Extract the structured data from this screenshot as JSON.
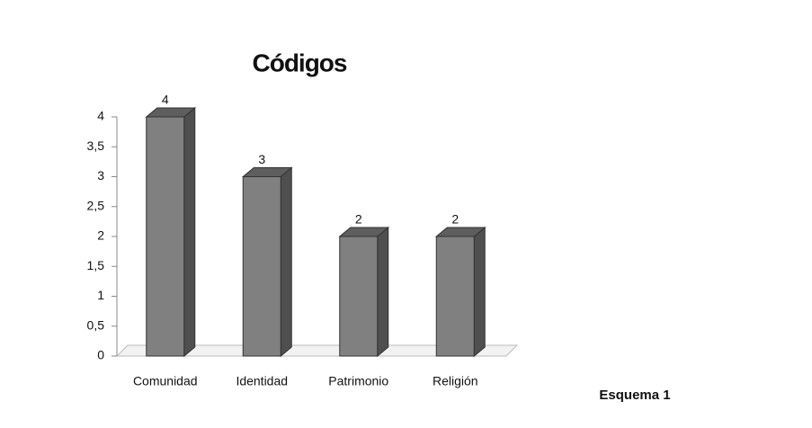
{
  "chart_data": {
    "type": "bar3d",
    "title": "Códigos",
    "caption": "Esquema 1",
    "categories": [
      "Comunidad",
      "Identidad",
      "Patrimonio",
      "Religión"
    ],
    "values": [
      4,
      3,
      2,
      2
    ],
    "color": "#808080",
    "ylim": [
      0,
      4
    ],
    "yticks": [
      0,
      {
        "value": 0.5,
        "label": "0,5"
      },
      1,
      {
        "value": 1.5,
        "label": "1,5"
      },
      2,
      {
        "value": 2.5,
        "label": "2,5"
      },
      3,
      {
        "value": 3.5,
        "label": "3,5"
      },
      4
    ],
    "grid": false
  }
}
